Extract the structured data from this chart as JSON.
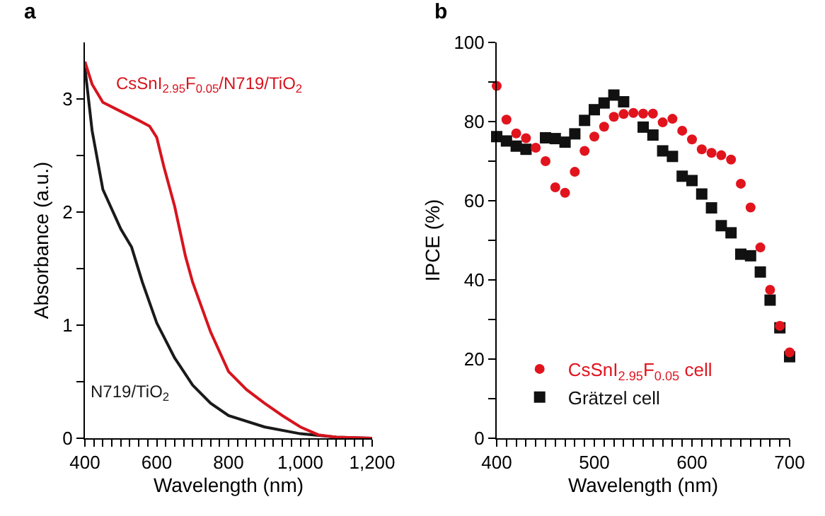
{
  "chart_data": [
    {
      "type": "line",
      "title": "a",
      "xlabel": "Wavelength (nm)",
      "ylabel": "Absorbance (a.u.)",
      "xlim": [
        400,
        1200
      ],
      "ylim": [
        0,
        3.5
      ],
      "xticks": [
        400,
        {
          "value": 425,
          "label": null
        },
        {
          "value": 450,
          "label": null
        },
        {
          "value": 475,
          "label": null
        },
        {
          "value": 500,
          "label": null
        },
        {
          "value": 525,
          "label": null
        },
        {
          "value": 550,
          "label": null
        },
        {
          "value": 575,
          "label": null
        },
        600,
        {
          "value": 625,
          "label": null
        },
        {
          "value": 650,
          "label": null
        },
        {
          "value": 675,
          "label": null
        },
        {
          "value": 700,
          "label": null
        },
        {
          "value": 725,
          "label": null
        },
        {
          "value": 750,
          "label": null
        },
        {
          "value": 775,
          "label": null
        },
        800,
        {
          "value": 825,
          "label": null
        },
        {
          "value": 850,
          "label": null
        },
        {
          "value": 875,
          "label": null
        },
        {
          "value": 900,
          "label": null
        },
        {
          "value": 925,
          "label": null
        },
        {
          "value": 950,
          "label": null
        },
        {
          "value": 975,
          "label": null
        },
        {
          "value": 1000,
          "label": "1,000"
        },
        {
          "value": 1025,
          "label": null
        },
        {
          "value": 1050,
          "label": null
        },
        {
          "value": 1075,
          "label": null
        },
        {
          "value": 1100,
          "label": null
        },
        {
          "value": 1125,
          "label": null
        },
        {
          "value": 1150,
          "label": null
        },
        {
          "value": 1175,
          "label": null
        },
        {
          "value": 1200,
          "label": "1,200"
        }
      ],
      "yticks": [
        0,
        {
          "value": 0.5,
          "label": null
        },
        1,
        {
          "value": 1.5,
          "label": null
        },
        2,
        {
          "value": 2.5,
          "label": null
        },
        3
      ],
      "x": [
        400,
        420,
        450,
        500,
        550,
        580,
        600,
        620,
        650,
        680,
        700,
        750,
        800,
        850,
        900,
        950,
        1000,
        1050,
        1100,
        1200
      ],
      "series": [
        {
          "name": "CsSnI$_{2.95}$F$_{0.05}$/N719/TiO$_{2}$",
          "color": "#d7141e",
          "values": [
            3.33,
            3.13,
            2.97,
            2.89,
            2.81,
            2.76,
            2.66,
            2.4,
            2.05,
            1.61,
            1.38,
            0.94,
            0.59,
            0.43,
            0.31,
            0.2,
            0.1,
            0.03,
            0.01,
            0
          ]
        },
        {
          "name": "N719/TiO$_{2}$",
          "color": "#1a1a1a",
          "x": [
            400,
            420,
            450,
            500,
            530,
            560,
            600,
            650,
            700,
            750,
            800,
            900,
            1000,
            1100,
            1200
          ],
          "values": [
            3.28,
            2.72,
            2.2,
            1.85,
            1.69,
            1.38,
            1.02,
            0.71,
            0.47,
            0.31,
            0.2,
            0.1,
            0.04,
            0.01,
            0
          ]
        }
      ],
      "legend": false
    },
    {
      "type": "scatter",
      "title": "b",
      "xlabel": "Wavelength (nm)",
      "ylabel": "IPCE (%)",
      "xlim": [
        400,
        700
      ],
      "ylim": [
        0,
        100
      ],
      "xticks": [
        400,
        {
          "value": 410,
          "label": null
        },
        {
          "value": 420,
          "label": null
        },
        {
          "value": 430,
          "label": null
        },
        {
          "value": 440,
          "label": null
        },
        {
          "value": 450,
          "label": null
        },
        {
          "value": 460,
          "label": null
        },
        {
          "value": 470,
          "label": null
        },
        {
          "value": 480,
          "label": null
        },
        {
          "value": 490,
          "label": null
        },
        500,
        {
          "value": 510,
          "label": null
        },
        {
          "value": 520,
          "label": null
        },
        {
          "value": 530,
          "label": null
        },
        {
          "value": 540,
          "label": null
        },
        {
          "value": 550,
          "label": null
        },
        {
          "value": 560,
          "label": null
        },
        {
          "value": 570,
          "label": null
        },
        {
          "value": 580,
          "label": null
        },
        {
          "value": 590,
          "label": null
        },
        600,
        {
          "value": 610,
          "label": null
        },
        {
          "value": 620,
          "label": null
        },
        {
          "value": 630,
          "label": null
        },
        {
          "value": 640,
          "label": null
        },
        {
          "value": 650,
          "label": null
        },
        {
          "value": 660,
          "label": null
        },
        {
          "value": 670,
          "label": null
        },
        {
          "value": 680,
          "label": null
        },
        {
          "value": 690,
          "label": null
        },
        700
      ],
      "yticks": [
        0,
        {
          "value": 10,
          "label": null
        },
        20,
        {
          "value": 30,
          "label": null
        },
        40,
        {
          "value": 50,
          "label": null
        },
        60,
        {
          "value": 70,
          "label": null
        },
        80,
        {
          "value": 90,
          "label": null
        },
        100
      ],
      "x": [
        400,
        410,
        420,
        430,
        440,
        450,
        460,
        470,
        480,
        490,
        500,
        510,
        520,
        530,
        540,
        550,
        560,
        570,
        580,
        590,
        600,
        610,
        620,
        630,
        640,
        650,
        660,
        670,
        680,
        690,
        700
      ],
      "series": [
        {
          "name": "CsSnI$_{2.95}$F$_{0.05}$ cell",
          "color": "#e1141e",
          "marker": "circle",
          "values": [
            89,
            80.5,
            77,
            75.8,
            73.4,
            70,
            63.4,
            62,
            67.3,
            72.6,
            76.2,
            78.7,
            81.2,
            81.9,
            82.2,
            82,
            82,
            79.8,
            80.7,
            77.7,
            75.5,
            73,
            72.1,
            71.5,
            70.4,
            64.3,
            58.3,
            48.2,
            37.5,
            28.4,
            21.7
          ]
        },
        {
          "name": "Grätzel cell",
          "color": "#111111",
          "marker": "square",
          "values": [
            76.2,
            75.1,
            73.8,
            73,
            null,
            75.9,
            75.7,
            74.8,
            76.9,
            80.3,
            83,
            84.7,
            86.7,
            85,
            null,
            78.6,
            76.6,
            72.6,
            71.2,
            66.2,
            65.1,
            61.7,
            58.2,
            53.7,
            51.9,
            46.5,
            46.1,
            42,
            34.9,
            27.9,
            20.6
          ]
        }
      ],
      "legend": "bottom left"
    }
  ]
}
